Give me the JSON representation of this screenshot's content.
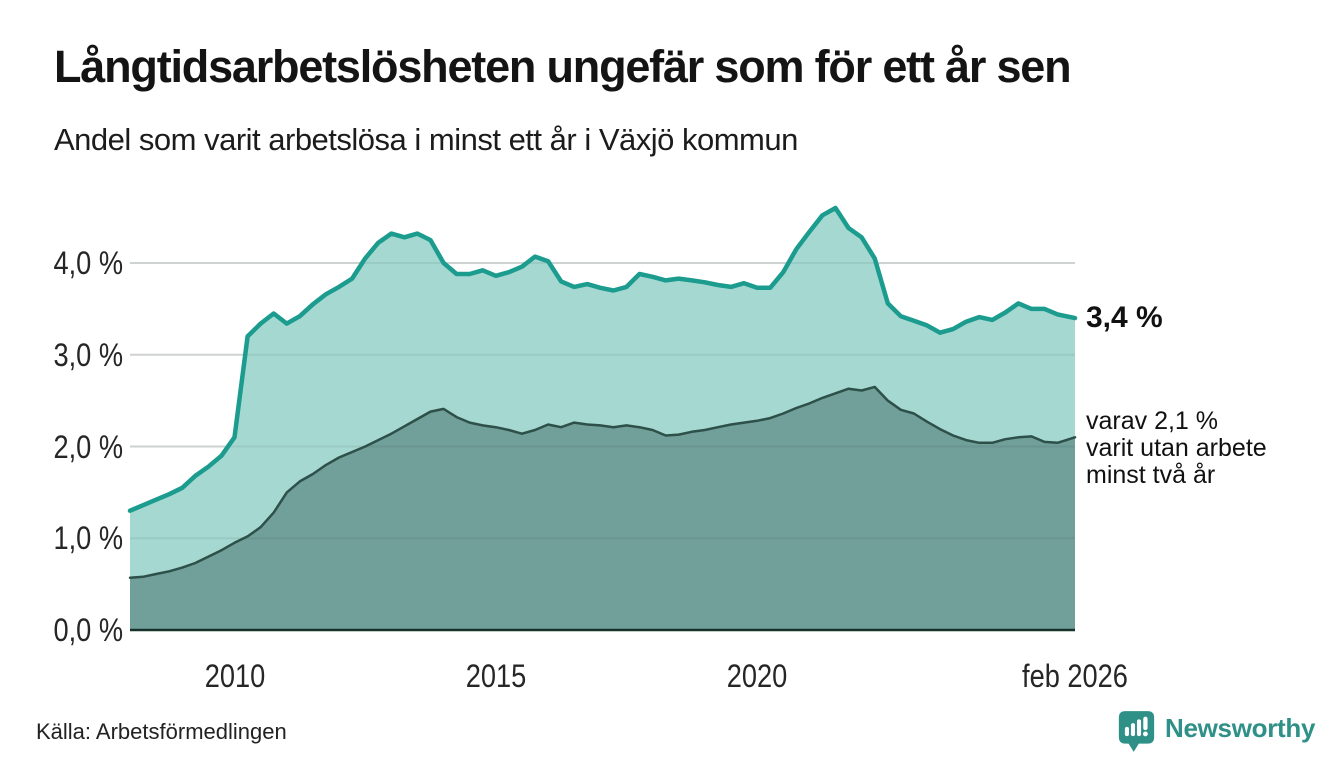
{
  "header": {
    "title": "Långtidsarbetslösheten ungefär som för ett år sen",
    "subtitle": "Andel som varit arbetslösa i minst ett år i Växjö kommun"
  },
  "annotations": {
    "total_end_label": "3,4 %",
    "subset_lines": [
      "varav 2,1 %",
      "varit utan arbete",
      "minst två år"
    ]
  },
  "axes": {
    "y_ticks": [
      {
        "label": "4,0 %",
        "value": 4.0
      },
      {
        "label": "3,0 %",
        "value": 3.0
      },
      {
        "label": "2,0 %",
        "value": 2.0
      },
      {
        "label": "1,0 %",
        "value": 1.0
      },
      {
        "label": "0,0 %",
        "value": 0.0
      }
    ],
    "x_ticks": [
      {
        "label": "2010",
        "value": 2010
      },
      {
        "label": "2015",
        "value": 2015
      },
      {
        "label": "2020",
        "value": 2020
      },
      {
        "label": "feb 2026",
        "value": 2026.083
      }
    ]
  },
  "footer": {
    "source": "Källa: Arbetsförmedlingen",
    "brand": "Newsworthy"
  },
  "colors": {
    "total_line": "#1b9c8e",
    "total_fill": "#a6d8d2",
    "subset_line": "#2d5049",
    "subset_fill": "#719f99",
    "grid": "#e1e1e1",
    "grid_overlay": "rgba(38,77,70,0.10)",
    "axis": "#16322b",
    "brand_teal": "#2f9087"
  },
  "chart_data": {
    "type": "area",
    "title": "Långtidsarbetslösheten ungefär som för ett år sen",
    "subtitle": "Andel som varit arbetslösa i minst ett år i Växjö kommun",
    "x_unit": "decimal_year",
    "x_range": [
      2008.0,
      2026.083
    ],
    "ylim": [
      0,
      4.8
    ],
    "y_gridlines": [
      1,
      2,
      3,
      4
    ],
    "legend_position": "right-of-line-ends",
    "grid": true,
    "x": [
      2008.0,
      2008.25,
      2008.5,
      2008.75,
      2009.0,
      2009.25,
      2009.5,
      2009.75,
      2010.0,
      2010.25,
      2010.5,
      2010.75,
      2011.0,
      2011.25,
      2011.5,
      2011.75,
      2012.0,
      2012.25,
      2012.5,
      2012.75,
      2013.0,
      2013.25,
      2013.5,
      2013.75,
      2014.0,
      2014.25,
      2014.5,
      2014.75,
      2015.0,
      2015.25,
      2015.5,
      2015.75,
      2016.0,
      2016.25,
      2016.5,
      2016.75,
      2017.0,
      2017.25,
      2017.5,
      2017.75,
      2018.0,
      2018.25,
      2018.5,
      2018.75,
      2019.0,
      2019.25,
      2019.5,
      2019.75,
      2020.0,
      2020.25,
      2020.5,
      2020.75,
      2021.0,
      2021.25,
      2021.5,
      2021.75,
      2022.0,
      2022.25,
      2022.5,
      2022.75,
      2023.0,
      2023.25,
      2023.5,
      2023.75,
      2024.0,
      2024.25,
      2024.5,
      2024.75,
      2025.0,
      2025.25,
      2025.5,
      2025.75,
      2026.083
    ],
    "series": [
      {
        "name": "Andel arbetslösa i minst ett år",
        "end_value_label": "3,4 %",
        "end_value": 3.4,
        "values": [
          1.3,
          1.36,
          1.42,
          1.48,
          1.55,
          1.68,
          1.78,
          1.9,
          2.1,
          3.2,
          3.34,
          3.45,
          3.34,
          3.42,
          3.55,
          3.66,
          3.74,
          3.83,
          4.05,
          4.22,
          4.32,
          4.28,
          4.32,
          4.25,
          4.0,
          3.88,
          3.88,
          3.92,
          3.86,
          3.9,
          3.96,
          4.07,
          4.02,
          3.8,
          3.74,
          3.77,
          3.73,
          3.7,
          3.74,
          3.88,
          3.85,
          3.81,
          3.83,
          3.81,
          3.79,
          3.76,
          3.74,
          3.78,
          3.73,
          3.73,
          3.9,
          4.15,
          4.34,
          4.52,
          4.6,
          4.38,
          4.28,
          4.05,
          3.56,
          3.42,
          3.37,
          3.32,
          3.24,
          3.28,
          3.36,
          3.41,
          3.38,
          3.46,
          3.56,
          3.5,
          3.5,
          3.44,
          3.4
        ]
      },
      {
        "name": "varav utan arbete minst två år",
        "end_value_label": "2,1 %",
        "end_value": 2.1,
        "values": [
          0.57,
          0.58,
          0.61,
          0.64,
          0.68,
          0.73,
          0.8,
          0.87,
          0.95,
          1.02,
          1.12,
          1.28,
          1.5,
          1.62,
          1.7,
          1.8,
          1.88,
          1.94,
          2.0,
          2.07,
          2.14,
          2.22,
          2.3,
          2.38,
          2.41,
          2.32,
          2.26,
          2.23,
          2.21,
          2.18,
          2.14,
          2.18,
          2.24,
          2.21,
          2.26,
          2.24,
          2.23,
          2.21,
          2.23,
          2.21,
          2.18,
          2.12,
          2.13,
          2.16,
          2.18,
          2.21,
          2.24,
          2.26,
          2.28,
          2.31,
          2.36,
          2.42,
          2.47,
          2.53,
          2.58,
          2.63,
          2.61,
          2.65,
          2.5,
          2.4,
          2.36,
          2.27,
          2.19,
          2.12,
          2.07,
          2.04,
          2.04,
          2.08,
          2.1,
          2.11,
          2.05,
          2.04,
          2.1
        ]
      }
    ]
  }
}
